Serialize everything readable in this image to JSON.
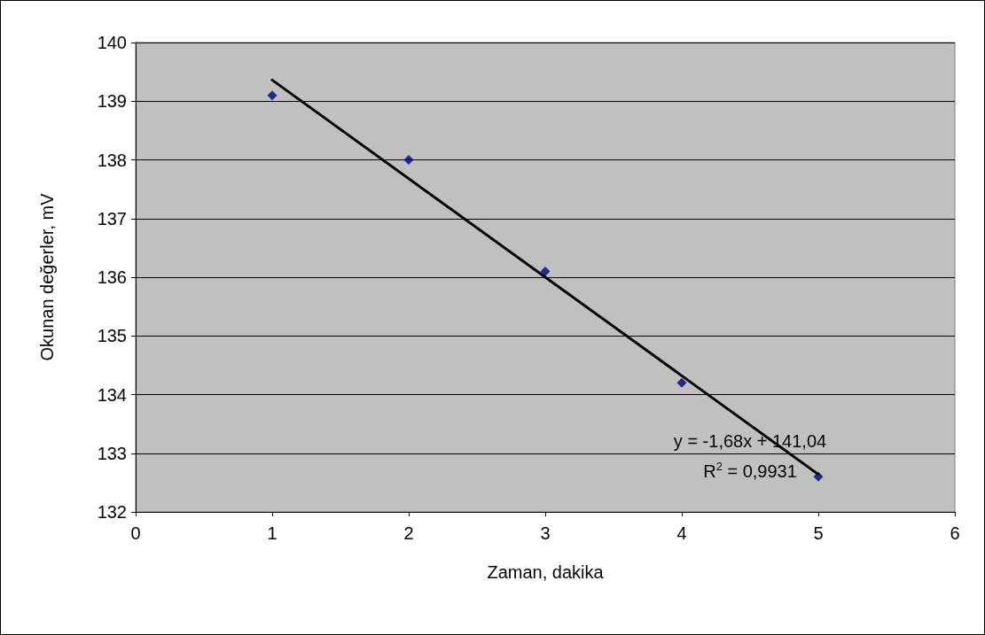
{
  "chart_data": {
    "type": "scatter",
    "xlabel": "Zaman, dakika",
    "ylabel": "Okunan değerler, mV",
    "series": [
      {
        "color": "#000080",
        "x": [
          1,
          2,
          3,
          4,
          5
        ],
        "values": [
          139.1,
          138.0,
          136.1,
          134.2,
          132.6
        ],
        "marker": "diamond"
      },
      {
        "type": "line",
        "color": "#000000",
        "x": [
          1,
          5
        ],
        "values": [
          139.36,
          132.64
        ],
        "marker": "none",
        "line_style": "solid"
      }
    ],
    "annotations": [
      "y = -1,68x + 141,04",
      "R$^{2}$ = 0,9931"
    ],
    "xlim": [
      0,
      6
    ],
    "xticks": [
      0,
      1,
      2,
      3,
      4,
      5,
      6
    ],
    "ylim": [
      132,
      140
    ],
    "yticks": [
      132,
      133,
      134,
      135,
      136,
      137,
      138,
      139,
      140
    ],
    "grid": "y"
  }
}
